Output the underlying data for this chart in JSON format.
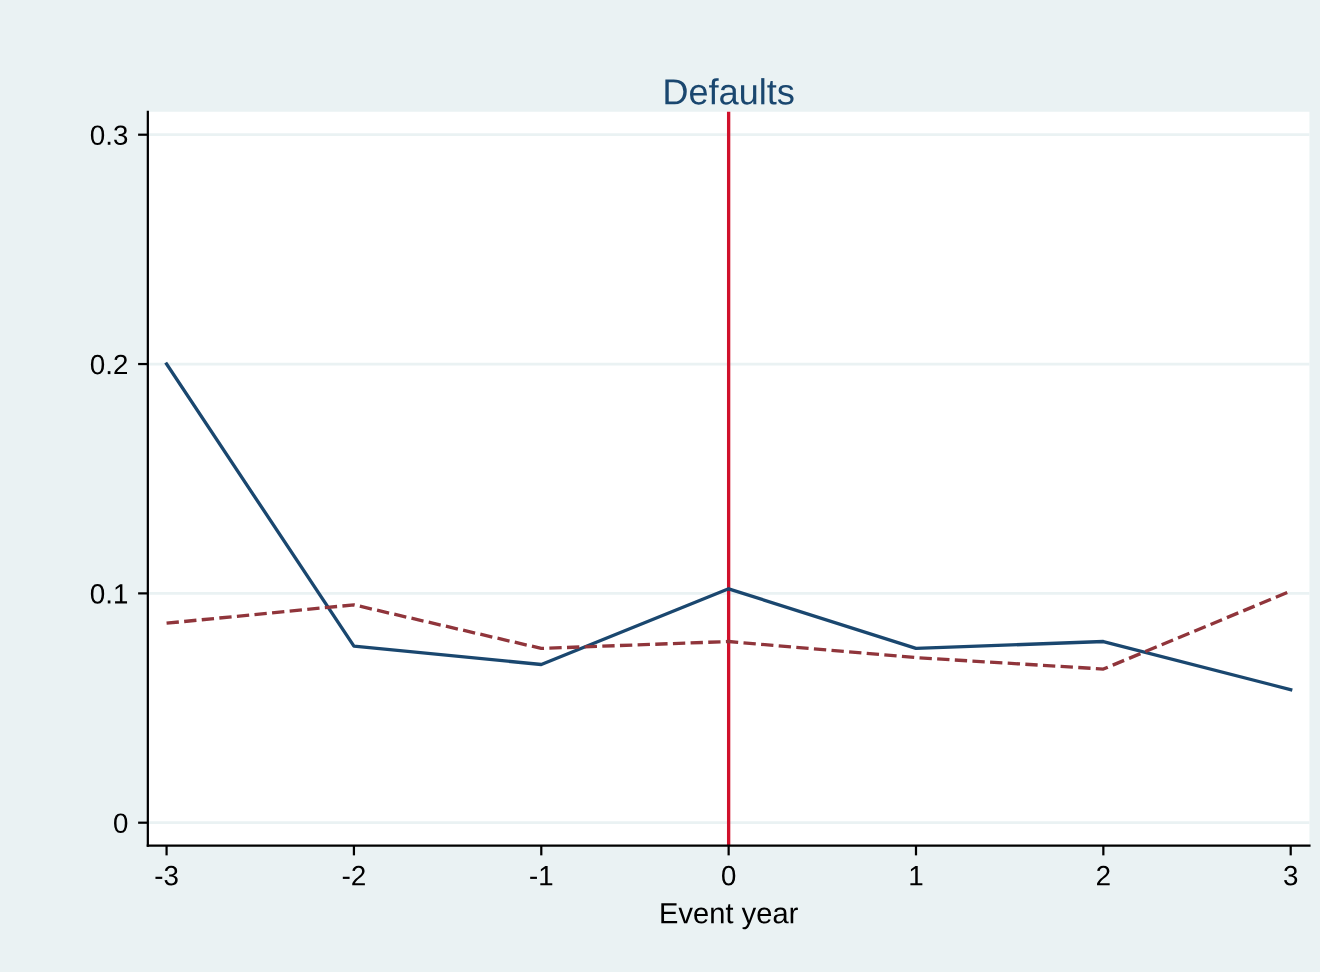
{
  "chart_data": {
    "type": "line",
    "title": "Defaults",
    "xlabel": "Event year",
    "x": [
      -3,
      -2,
      -1,
      0,
      1,
      2,
      3
    ],
    "series": [
      {
        "color": "#1a476f",
        "values": [
          0.2,
          0.077,
          0.069,
          0.102,
          0.076,
          0.079,
          0.058
        ],
        "line_style": "solid"
      },
      {
        "color": "#90353b",
        "values": [
          0.087,
          0.095,
          0.076,
          0.079,
          0.072,
          0.067,
          0.101
        ],
        "line_style": "dashed"
      }
    ],
    "xlim": [
      -3.1,
      3.1
    ],
    "xticks": [
      -3,
      -2,
      -1,
      0,
      1,
      2,
      3
    ],
    "ylim": [
      -0.01,
      0.31
    ],
    "yticks": [
      0,
      0.1,
      0.2,
      0.3
    ],
    "grid": "y",
    "legend": false,
    "marker": "none",
    "ref_lines": [
      {
        "axis": "x",
        "value": 0,
        "color": "#d0112b"
      }
    ]
  }
}
